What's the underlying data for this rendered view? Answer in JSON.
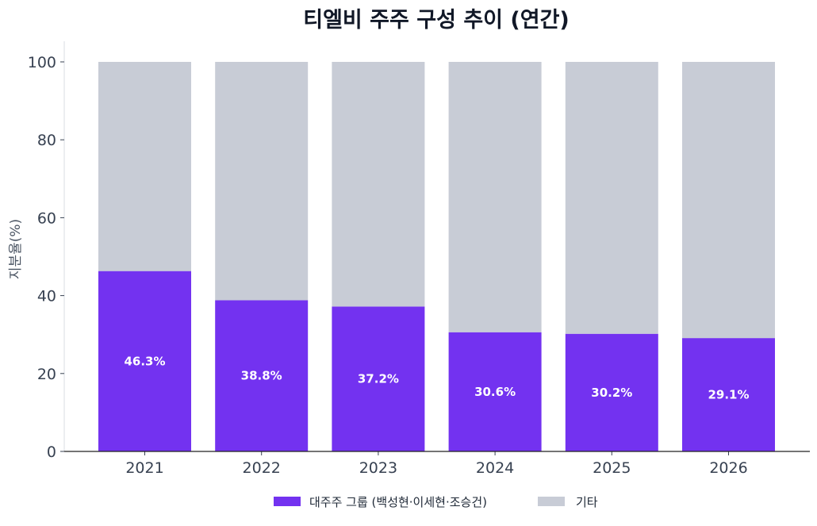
{
  "chart_data": {
    "type": "bar",
    "stacked": true,
    "title": "티엘비 주주 구성 추이 (연간)",
    "xlabel": "",
    "ylabel": "지분율(%)",
    "ylim": [
      0,
      100
    ],
    "yticks": [
      0,
      20,
      40,
      60,
      80,
      100
    ],
    "categories": [
      "2021",
      "2022",
      "2023",
      "2024",
      "2025",
      "2026"
    ],
    "series": [
      {
        "name": "대주주 그룹 (백성현·이세현·조승건)",
        "color": "#7332f0",
        "values": [
          46.3,
          38.8,
          37.2,
          30.6,
          30.2,
          29.1
        ],
        "labels": [
          "46.3%",
          "38.8%",
          "37.2%",
          "30.6%",
          "30.2%",
          "29.1%"
        ]
      },
      {
        "name": "기타",
        "color": "#c8ccd6",
        "values": [
          53.7,
          61.2,
          62.8,
          69.4,
          69.8,
          70.9
        ]
      }
    ],
    "grid": false,
    "legend": "bottom-center"
  }
}
